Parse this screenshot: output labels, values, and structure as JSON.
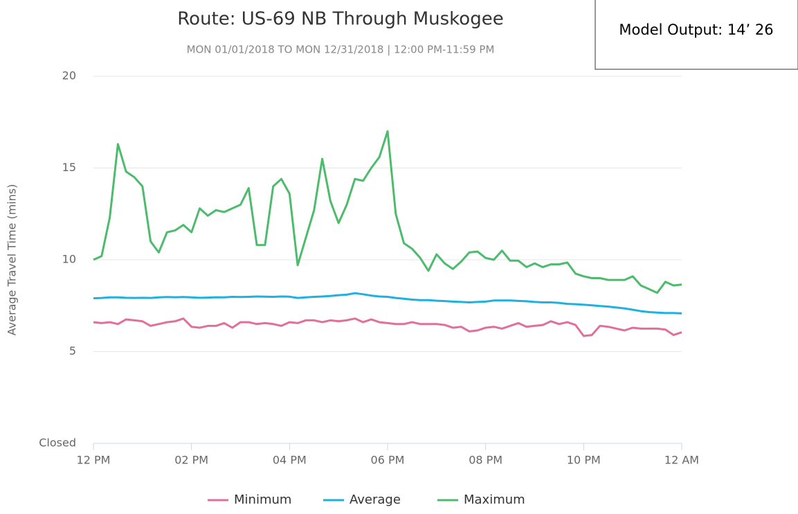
{
  "chart_data": {
    "type": "line",
    "title": "Route: US-69 NB Through Muskogee",
    "subtitle": "MON 01/01/2018 TO MON 12/31/2018 | 12:00 PM-11:59 PM",
    "annotation": "Model Output: 14’ 26",
    "ylabel": "Average Travel Time (mins)",
    "x": [
      0,
      10,
      20,
      30,
      40,
      50,
      60,
      70,
      80,
      90,
      100,
      110,
      120,
      130,
      140,
      150,
      160,
      170,
      180,
      190,
      200,
      210,
      220,
      230,
      240,
      250,
      260,
      270,
      280,
      290,
      300,
      310,
      320,
      330,
      340,
      350,
      360,
      370,
      380,
      390,
      400,
      410,
      420,
      430,
      440,
      450,
      460,
      470,
      480,
      490,
      500,
      510,
      520,
      530,
      540,
      550,
      560,
      570,
      580,
      590,
      600,
      610,
      620,
      630,
      640,
      650,
      660,
      670,
      680,
      690,
      700,
      710,
      720
    ],
    "xlim": [
      0,
      720
    ],
    "xticks": [
      {
        "value": 0,
        "label": "12 PM"
      },
      {
        "value": 120,
        "label": "02 PM"
      },
      {
        "value": 240,
        "label": "04 PM"
      },
      {
        "value": 360,
        "label": "06 PM"
      },
      {
        "value": 480,
        "label": "08 PM"
      },
      {
        "value": 600,
        "label": "10 PM"
      },
      {
        "value": 720,
        "label": "12 AM"
      }
    ],
    "ylim": [
      0,
      20
    ],
    "yticks": [
      {
        "value": 0,
        "label": "Closed"
      },
      5,
      10,
      15,
      20
    ],
    "grid": true,
    "legend": "bottom",
    "series": [
      {
        "name": "Minimum",
        "color": "#e0709a",
        "values": [
          6.6,
          6.55,
          6.6,
          6.5,
          6.75,
          6.7,
          6.65,
          6.4,
          6.5,
          6.6,
          6.65,
          6.8,
          6.35,
          6.3,
          6.4,
          6.4,
          6.55,
          6.3,
          6.6,
          6.6,
          6.5,
          6.55,
          6.5,
          6.4,
          6.6,
          6.55,
          6.7,
          6.7,
          6.6,
          6.7,
          6.65,
          6.7,
          6.8,
          6.6,
          6.75,
          6.6,
          6.55,
          6.5,
          6.5,
          6.6,
          6.5,
          6.5,
          6.5,
          6.45,
          6.3,
          6.35,
          6.1,
          6.15,
          6.3,
          6.35,
          6.25,
          6.4,
          6.55,
          6.35,
          6.4,
          6.45,
          6.65,
          6.5,
          6.6,
          6.45,
          5.85,
          5.9,
          6.4,
          6.35,
          6.25,
          6.15,
          6.3,
          6.25,
          6.25,
          6.25,
          6.2,
          5.9,
          6.05
        ]
      },
      {
        "name": "Average",
        "color": "#1fb0e0",
        "values": [
          7.9,
          7.92,
          7.95,
          7.95,
          7.93,
          7.92,
          7.93,
          7.92,
          7.95,
          7.97,
          7.96,
          7.97,
          7.95,
          7.93,
          7.94,
          7.96,
          7.95,
          7.98,
          7.97,
          7.98,
          8.0,
          7.99,
          7.98,
          8.0,
          7.99,
          7.92,
          7.95,
          7.98,
          8.0,
          8.03,
          8.07,
          8.1,
          8.18,
          8.12,
          8.05,
          8.0,
          7.98,
          7.92,
          7.88,
          7.83,
          7.8,
          7.8,
          7.77,
          7.75,
          7.72,
          7.7,
          7.68,
          7.7,
          7.72,
          7.78,
          7.78,
          7.78,
          7.76,
          7.74,
          7.7,
          7.68,
          7.68,
          7.65,
          7.6,
          7.58,
          7.55,
          7.52,
          7.48,
          7.45,
          7.4,
          7.35,
          7.28,
          7.2,
          7.15,
          7.12,
          7.1,
          7.1,
          7.08
        ]
      },
      {
        "name": "Maximum",
        "color": "#4cbb6c",
        "values": [
          10.0,
          10.2,
          12.3,
          16.3,
          14.8,
          14.5,
          14.0,
          11.0,
          10.4,
          11.5,
          11.6,
          11.9,
          11.5,
          12.8,
          12.4,
          12.7,
          12.6,
          12.8,
          13.0,
          13.9,
          10.8,
          10.8,
          14.0,
          14.4,
          13.6,
          9.7,
          11.2,
          12.7,
          15.5,
          13.2,
          12.0,
          13.0,
          14.4,
          14.3,
          15.0,
          15.6,
          17.0,
          12.5,
          10.9,
          10.6,
          10.1,
          9.4,
          10.3,
          9.8,
          9.5,
          9.9,
          10.4,
          10.45,
          10.1,
          10.0,
          10.5,
          9.95,
          9.95,
          9.6,
          9.8,
          9.6,
          9.75,
          9.75,
          9.85,
          9.25,
          9.1,
          9.0,
          9.0,
          8.9,
          8.9,
          8.9,
          9.1,
          8.6,
          8.4,
          8.2,
          8.8,
          8.6,
          8.65
        ]
      }
    ]
  }
}
